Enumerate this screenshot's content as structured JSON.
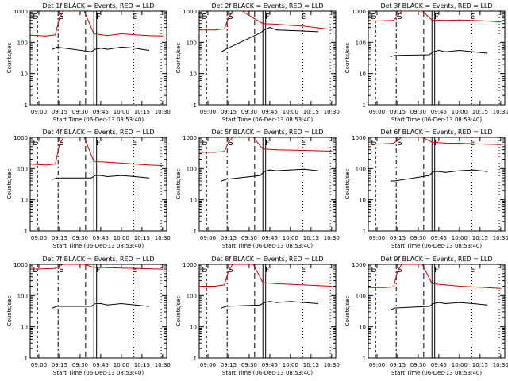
{
  "figure": {
    "xlabel": "Start Time (06-Dec-13 08:53:40)",
    "ylabel": "Counts/sec",
    "yticks": [
      "1",
      "10",
      "100",
      "1000"
    ],
    "xticks": [
      "09:00",
      "09:15",
      "09:30",
      "09:45",
      "10:00",
      "10:15",
      "10:30"
    ],
    "event_markers": [
      "E",
      "S",
      "F",
      "E"
    ],
    "series_colors": {
      "events": "#000000",
      "lld": "#cc0000"
    }
  },
  "chart_data": [
    {
      "type": "line",
      "title": "Det 1f BLACK = Events, RED = LLD",
      "xlabel": "Start Time (06-Dec-13 08:53:40)",
      "ylabel": "Counts/sec",
      "y_scale": "log",
      "ylim": [
        1,
        1000
      ],
      "xticks": [
        "09:00",
        "09:15",
        "09:30",
        "09:45",
        "10:00",
        "10:15",
        "10:30"
      ],
      "series": [
        {
          "color": "#cc0000",
          "x": [
            "08:54",
            "09:05",
            "09:12",
            "09:15",
            "09:18",
            "09:25",
            "09:33",
            "09:40",
            "09:50",
            "10:00",
            "10:10",
            "10:20",
            "10:30"
          ],
          "values": [
            170,
            160,
            175,
            600,
            1000,
            1000,
            1000,
            190,
            165,
            190,
            175,
            165,
            160
          ]
        },
        {
          "color": "#000000",
          "x": [
            "09:10",
            "09:13",
            "09:38",
            "09:41",
            "09:45",
            "09:50",
            "10:00",
            "10:10",
            "10:20"
          ],
          "values": [
            60,
            70,
            50,
            60,
            65,
            60,
            70,
            65,
            55
          ]
        }
      ]
    },
    {
      "type": "line",
      "title": "Det 2f BLACK = Events, RED = LLD",
      "xlabel": "Start Time (06-Dec-13 08:53:40)",
      "ylabel": "Counts/sec",
      "y_scale": "log",
      "ylim": [
        1,
        1000
      ],
      "xticks": [
        "09:00",
        "09:15",
        "09:30",
        "09:45",
        "10:00",
        "10:15",
        "10:30"
      ],
      "series": [
        {
          "color": "#cc0000",
          "x": [
            "08:54",
            "09:05",
            "09:12",
            "09:15",
            "09:18",
            "09:25",
            "09:33",
            "09:40",
            "09:50",
            "10:00",
            "10:10",
            "10:20",
            "10:30"
          ],
          "values": [
            250,
            250,
            270,
            600,
            1000,
            1000,
            600,
            400,
            380,
            350,
            330,
            290,
            260
          ]
        },
        {
          "color": "#000000",
          "x": [
            "09:10",
            "09:13",
            "09:38",
            "09:41",
            "09:45",
            "09:50",
            "10:00",
            "10:10",
            "10:20"
          ],
          "values": [
            50,
            60,
            200,
            250,
            300,
            250,
            240,
            230,
            220
          ]
        }
      ]
    },
    {
      "type": "line",
      "title": "Det 3f BLACK = Events, RED = LLD",
      "xlabel": "Start Time (06-Dec-13 08:53:40)",
      "ylabel": "Counts/sec",
      "y_scale": "log",
      "ylim": [
        1,
        1000
      ],
      "xticks": [
        "09:00",
        "09:15",
        "09:30",
        "09:45",
        "10:00",
        "10:15",
        "10:30"
      ],
      "series": [
        {
          "color": "#cc0000",
          "x": [
            "08:54",
            "09:05",
            "09:12",
            "09:15",
            "09:18",
            "09:25",
            "09:33",
            "09:40",
            "09:50",
            "10:00",
            "10:10",
            "10:20",
            "10:30"
          ],
          "values": [
            480,
            490,
            500,
            700,
            1000,
            1000,
            1000,
            520,
            500,
            520,
            500,
            480,
            450
          ]
        },
        {
          "color": "#000000",
          "x": [
            "09:10",
            "09:13",
            "09:38",
            "09:41",
            "09:45",
            "09:50",
            "10:00",
            "10:10",
            "10:20"
          ],
          "values": [
            35,
            38,
            40,
            50,
            55,
            50,
            55,
            50,
            45
          ]
        }
      ]
    },
    {
      "type": "line",
      "title": "Det 4f BLACK = Events, RED = LLD",
      "xlabel": "Start Time (06-Dec-13 08:53:40)",
      "ylabel": "Counts/sec",
      "y_scale": "log",
      "ylim": [
        1,
        1000
      ],
      "xticks": [
        "09:00",
        "09:15",
        "09:30",
        "09:45",
        "10:00",
        "10:15",
        "10:30"
      ],
      "series": [
        {
          "color": "#cc0000",
          "x": [
            "08:54",
            "09:05",
            "09:12",
            "09:15",
            "09:18",
            "09:25",
            "09:33",
            "09:40",
            "09:50",
            "10:00",
            "10:10",
            "10:20",
            "10:30"
          ],
          "values": [
            140,
            130,
            140,
            600,
            1000,
            1000,
            1000,
            170,
            160,
            150,
            140,
            130,
            125
          ]
        },
        {
          "color": "#000000",
          "x": [
            "09:10",
            "09:13",
            "09:38",
            "09:41",
            "09:45",
            "09:50",
            "10:00",
            "10:10",
            "10:20"
          ],
          "values": [
            45,
            50,
            50,
            60,
            60,
            55,
            60,
            55,
            50
          ]
        }
      ]
    },
    {
      "type": "line",
      "title": "Det 5f BLACK = Events, RED = LLD",
      "xlabel": "Start Time (06-Dec-13 08:53:40)",
      "ylabel": "Counts/sec",
      "y_scale": "log",
      "ylim": [
        1,
        1000
      ],
      "xticks": [
        "09:00",
        "09:15",
        "09:30",
        "09:45",
        "10:00",
        "10:15",
        "10:30"
      ],
      "series": [
        {
          "color": "#cc0000",
          "x": [
            "08:54",
            "09:05",
            "09:12",
            "09:15",
            "09:18",
            "09:25",
            "09:33",
            "09:40",
            "09:50",
            "10:00",
            "10:10",
            "10:20",
            "10:30"
          ],
          "values": [
            330,
            330,
            350,
            700,
            1000,
            1000,
            1000,
            420,
            400,
            390,
            380,
            370,
            360
          ]
        },
        {
          "color": "#000000",
          "x": [
            "09:10",
            "09:13",
            "09:38",
            "09:41",
            "09:45",
            "09:50",
            "10:00",
            "10:10",
            "10:20"
          ],
          "values": [
            40,
            45,
            60,
            80,
            90,
            85,
            90,
            95,
            85
          ]
        }
      ]
    },
    {
      "type": "line",
      "title": "Det 6f BLACK = Events, RED = LLD",
      "xlabel": "Start Time (06-Dec-13 08:53:40)",
      "ylabel": "Counts/sec",
      "y_scale": "log",
      "ylim": [
        1,
        1000
      ],
      "xticks": [
        "09:00",
        "09:15",
        "09:30",
        "09:45",
        "10:00",
        "10:15",
        "10:30"
      ],
      "series": [
        {
          "color": "#cc0000",
          "x": [
            "08:54",
            "09:05",
            "09:12",
            "09:15",
            "09:18",
            "09:25",
            "09:33",
            "09:40",
            "09:50",
            "10:00",
            "10:10",
            "10:20",
            "10:30"
          ],
          "values": [
            600,
            620,
            640,
            800,
            1000,
            1000,
            1000,
            700,
            650,
            640,
            620,
            600,
            580
          ]
        },
        {
          "color": "#000000",
          "x": [
            "09:10",
            "09:13",
            "09:38",
            "09:41",
            "09:45",
            "09:50",
            "10:00",
            "10:10",
            "10:20"
          ],
          "values": [
            40,
            40,
            60,
            80,
            80,
            75,
            85,
            90,
            80
          ]
        }
      ]
    },
    {
      "type": "line",
      "title": "Det 7f BLACK = Events, RED = LLD",
      "xlabel": "Start Time (06-Dec-13 08:53:40)",
      "ylabel": "Counts/sec",
      "y_scale": "log",
      "ylim": [
        1,
        1000
      ],
      "xticks": [
        "09:00",
        "09:15",
        "09:30",
        "09:45",
        "10:00",
        "10:15",
        "10:30"
      ],
      "series": [
        {
          "color": "#cc0000",
          "x": [
            "08:54",
            "09:05",
            "09:12",
            "09:15",
            "09:18",
            "09:25",
            "09:33",
            "09:40",
            "09:50",
            "10:00",
            "10:10",
            "10:20",
            "10:30"
          ],
          "values": [
            700,
            720,
            740,
            900,
            1000,
            1000,
            1000,
            800,
            780,
            760,
            740,
            720,
            700
          ]
        },
        {
          "color": "#000000",
          "x": [
            "09:10",
            "09:13",
            "09:38",
            "09:41",
            "09:45",
            "09:50",
            "10:00",
            "10:10",
            "10:20"
          ],
          "values": [
            40,
            45,
            45,
            55,
            55,
            50,
            55,
            50,
            45
          ]
        }
      ]
    },
    {
      "type": "line",
      "title": "Det 8f BLACK = Events, RED = LLD",
      "xlabel": "Start Time (06-Dec-13 08:53:40)",
      "ylabel": "Counts/sec",
      "y_scale": "log",
      "ylim": [
        1,
        1000
      ],
      "xticks": [
        "09:00",
        "09:15",
        "09:30",
        "09:45",
        "10:00",
        "10:15",
        "10:30"
      ],
      "series": [
        {
          "color": "#cc0000",
          "x": [
            "08:54",
            "09:05",
            "09:12",
            "09:15",
            "09:18",
            "09:25",
            "09:33",
            "09:40",
            "09:50",
            "10:00",
            "10:10",
            "10:20",
            "10:30"
          ],
          "values": [
            200,
            200,
            220,
            600,
            1000,
            1000,
            1000,
            260,
            240,
            230,
            220,
            210,
            200
          ]
        },
        {
          "color": "#000000",
          "x": [
            "09:10",
            "09:13",
            "09:38",
            "09:41",
            "09:45",
            "09:50",
            "10:00",
            "10:10",
            "10:20"
          ],
          "values": [
            40,
            45,
            50,
            60,
            65,
            60,
            65,
            60,
            55
          ]
        }
      ]
    },
    {
      "type": "line",
      "title": "Det 9f BLACK = Events, RED = LLD",
      "xlabel": "Start Time (06-Dec-13 08:53:40)",
      "ylabel": "Counts/sec",
      "y_scale": "log",
      "ylim": [
        1,
        1000
      ],
      "xticks": [
        "09:00",
        "09:15",
        "09:30",
        "09:45",
        "10:00",
        "10:15",
        "10:30"
      ],
      "series": [
        {
          "color": "#cc0000",
          "x": [
            "08:54",
            "09:05",
            "09:12",
            "09:15",
            "09:18",
            "09:25",
            "09:33",
            "09:40",
            "09:50",
            "10:00",
            "10:10",
            "10:20",
            "10:30"
          ],
          "values": [
            180,
            180,
            190,
            600,
            1000,
            1000,
            1000,
            240,
            220,
            200,
            190,
            180,
            170
          ]
        },
        {
          "color": "#000000",
          "x": [
            "09:10",
            "09:13",
            "09:38",
            "09:41",
            "09:45",
            "09:50",
            "10:00",
            "10:10",
            "10:20"
          ],
          "values": [
            35,
            40,
            45,
            55,
            60,
            55,
            60,
            55,
            50
          ]
        }
      ]
    }
  ]
}
